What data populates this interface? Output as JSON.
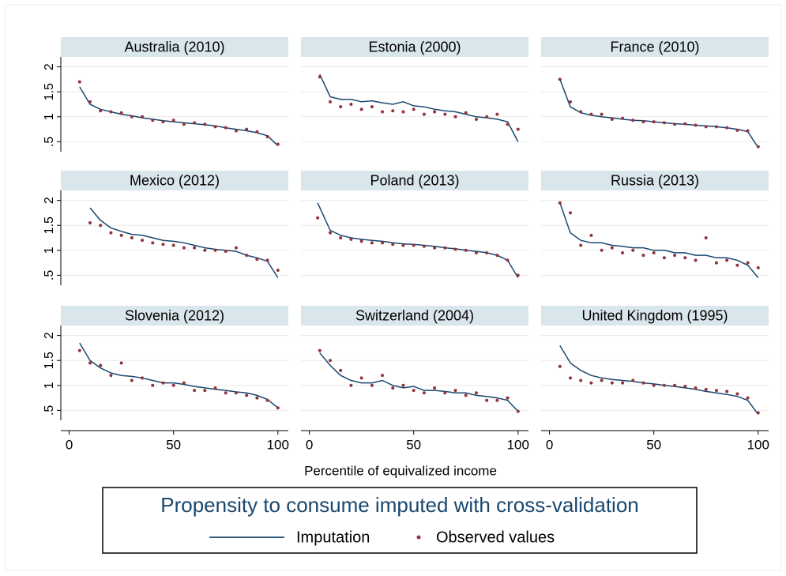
{
  "chart_data": {
    "type": "small_multiples",
    "xlabel": "Percentile of equivalized income",
    "legend_title": "Propensity to consume imputed with cross-validation",
    "series": [
      {
        "name": "Imputation",
        "color": "#1a476f",
        "style": "line"
      },
      {
        "name": "Observed values",
        "color": "#90353b",
        "style": "scatter"
      }
    ],
    "xlim": [
      -4,
      105
    ],
    "xticks": [
      0,
      50,
      100
    ],
    "ylim": [
      0.3,
      2.2
    ],
    "yticks": [
      {
        "value": 0.5,
        "label": ".5"
      },
      1,
      1.5,
      2
    ],
    "grid": true,
    "panels": [
      {
        "title": "Australia (2010)",
        "x": [
          5,
          10,
          15,
          20,
          25,
          30,
          35,
          40,
          45,
          50,
          55,
          60,
          65,
          70,
          75,
          80,
          85,
          90,
          95,
          100
        ],
        "values": [
          [
            1.6,
            1.25,
            1.15,
            1.1,
            1.05,
            1.02,
            0.98,
            0.95,
            0.92,
            0.9,
            0.88,
            0.86,
            0.84,
            0.82,
            0.78,
            0.75,
            0.72,
            0.68,
            0.62,
            0.42
          ],
          [
            1.7,
            1.3,
            1.12,
            1.1,
            1.08,
            1.0,
            1.0,
            0.93,
            0.9,
            0.93,
            0.85,
            0.88,
            0.85,
            0.8,
            0.78,
            0.72,
            0.75,
            0.7,
            0.6,
            0.45
          ]
        ]
      },
      {
        "title": "Estonia (2000)",
        "x": [
          5,
          10,
          15,
          20,
          25,
          30,
          35,
          40,
          45,
          50,
          55,
          60,
          65,
          70,
          75,
          80,
          85,
          90,
          95,
          100
        ],
        "values": [
          [
            1.85,
            1.4,
            1.35,
            1.35,
            1.3,
            1.32,
            1.28,
            1.25,
            1.3,
            1.22,
            1.2,
            1.15,
            1.12,
            1.1,
            1.05,
            1.0,
            0.98,
            0.95,
            0.9,
            0.5
          ],
          [
            1.8,
            1.3,
            1.2,
            1.25,
            1.15,
            1.2,
            1.1,
            1.12,
            1.1,
            1.15,
            1.05,
            1.1,
            1.05,
            1.0,
            1.08,
            0.95,
            1.0,
            1.05,
            0.85,
            0.75
          ]
        ]
      },
      {
        "title": "France (2010)",
        "x": [
          5,
          10,
          15,
          20,
          25,
          30,
          35,
          40,
          45,
          50,
          55,
          60,
          65,
          70,
          75,
          80,
          85,
          90,
          95,
          100
        ],
        "values": [
          [
            1.75,
            1.2,
            1.08,
            1.03,
            1.0,
            0.98,
            0.95,
            0.93,
            0.92,
            0.9,
            0.88,
            0.86,
            0.85,
            0.83,
            0.82,
            0.8,
            0.78,
            0.75,
            0.7,
            0.38
          ],
          [
            1.75,
            1.3,
            1.1,
            1.05,
            1.05,
            0.95,
            0.97,
            0.93,
            0.9,
            0.9,
            0.88,
            0.85,
            0.86,
            0.83,
            0.8,
            0.8,
            0.78,
            0.73,
            0.72,
            0.4
          ]
        ]
      },
      {
        "title": "Mexico (2012)",
        "x": [
          10,
          15,
          20,
          25,
          30,
          35,
          40,
          45,
          50,
          55,
          60,
          65,
          70,
          75,
          80,
          85,
          90,
          95,
          100
        ],
        "values": [
          [
            1.85,
            1.6,
            1.45,
            1.38,
            1.32,
            1.3,
            1.25,
            1.2,
            1.18,
            1.15,
            1.1,
            1.05,
            1.02,
            1.0,
            0.98,
            0.9,
            0.85,
            0.78,
            0.45
          ],
          [
            1.55,
            1.5,
            1.35,
            1.3,
            1.25,
            1.2,
            1.15,
            1.12,
            1.1,
            1.05,
            1.05,
            1.0,
            1.0,
            0.98,
            1.05,
            0.9,
            0.82,
            0.8,
            0.6
          ]
        ]
      },
      {
        "title": "Poland (2013)",
        "x": [
          4,
          10,
          15,
          20,
          25,
          30,
          35,
          40,
          45,
          50,
          55,
          60,
          65,
          70,
          75,
          80,
          85,
          90,
          95,
          100
        ],
        "values": [
          [
            1.95,
            1.4,
            1.3,
            1.25,
            1.22,
            1.2,
            1.18,
            1.15,
            1.13,
            1.12,
            1.1,
            1.08,
            1.05,
            1.03,
            1.0,
            0.98,
            0.95,
            0.9,
            0.8,
            0.45
          ],
          [
            1.65,
            1.35,
            1.25,
            1.22,
            1.18,
            1.15,
            1.15,
            1.12,
            1.1,
            1.1,
            1.08,
            1.05,
            1.05,
            1.02,
            1.0,
            0.95,
            0.95,
            0.9,
            0.8,
            0.5
          ]
        ]
      },
      {
        "title": "Russia (2013)",
        "x": [
          5,
          10,
          15,
          20,
          25,
          30,
          35,
          40,
          45,
          50,
          55,
          60,
          65,
          70,
          75,
          80,
          85,
          90,
          95,
          100
        ],
        "values": [
          [
            1.95,
            1.35,
            1.2,
            1.15,
            1.15,
            1.1,
            1.08,
            1.05,
            1.05,
            1.0,
            1.0,
            0.95,
            0.95,
            0.9,
            0.9,
            0.85,
            0.85,
            0.8,
            0.7,
            0.45
          ],
          [
            1.95,
            1.75,
            1.1,
            1.3,
            1.0,
            1.05,
            0.95,
            1.0,
            0.9,
            0.95,
            0.85,
            0.9,
            0.85,
            0.8,
            1.25,
            0.75,
            0.8,
            0.7,
            0.75,
            0.65
          ]
        ]
      },
      {
        "title": "Slovenia (2012)",
        "x": [
          5,
          10,
          15,
          20,
          25,
          30,
          35,
          40,
          45,
          50,
          55,
          60,
          65,
          70,
          75,
          80,
          85,
          90,
          95,
          100
        ],
        "values": [
          [
            1.85,
            1.5,
            1.35,
            1.25,
            1.2,
            1.18,
            1.15,
            1.1,
            1.05,
            1.05,
            1.02,
            0.98,
            0.95,
            0.92,
            0.9,
            0.87,
            0.85,
            0.8,
            0.72,
            0.55
          ],
          [
            1.7,
            1.45,
            1.4,
            1.2,
            1.45,
            1.1,
            1.15,
            1.0,
            1.05,
            1.0,
            1.05,
            0.9,
            0.9,
            0.95,
            0.85,
            0.85,
            0.8,
            0.75,
            0.7,
            0.55
          ]
        ]
      },
      {
        "title": "Switzerland (2004)",
        "x": [
          5,
          10,
          15,
          20,
          25,
          30,
          35,
          40,
          45,
          50,
          55,
          60,
          65,
          70,
          75,
          80,
          85,
          90,
          95,
          100
        ],
        "values": [
          [
            1.65,
            1.4,
            1.2,
            1.1,
            1.05,
            1.05,
            1.1,
            1.0,
            0.95,
            0.98,
            0.9,
            0.9,
            0.88,
            0.85,
            0.85,
            0.8,
            0.78,
            0.75,
            0.7,
            0.48
          ],
          [
            1.7,
            1.5,
            1.3,
            1.0,
            1.15,
            1.0,
            1.2,
            0.95,
            1.0,
            0.9,
            0.85,
            0.95,
            0.85,
            0.9,
            0.8,
            0.85,
            0.7,
            0.7,
            0.75,
            0.48
          ]
        ]
      },
      {
        "title": "United Kingdom (1995)",
        "x": [
          5,
          10,
          15,
          20,
          25,
          30,
          35,
          40,
          45,
          50,
          55,
          60,
          65,
          70,
          75,
          80,
          85,
          90,
          95,
          100
        ],
        "values": [
          [
            1.8,
            1.45,
            1.3,
            1.2,
            1.15,
            1.12,
            1.1,
            1.08,
            1.05,
            1.03,
            1.0,
            0.98,
            0.95,
            0.92,
            0.88,
            0.85,
            0.82,
            0.78,
            0.7,
            0.42
          ],
          [
            1.38,
            1.15,
            1.1,
            1.05,
            1.1,
            1.05,
            1.05,
            1.1,
            1.05,
            1.0,
            1.0,
            1.0,
            0.98,
            0.95,
            0.92,
            0.9,
            0.88,
            0.83,
            0.75,
            0.45
          ]
        ]
      }
    ]
  }
}
